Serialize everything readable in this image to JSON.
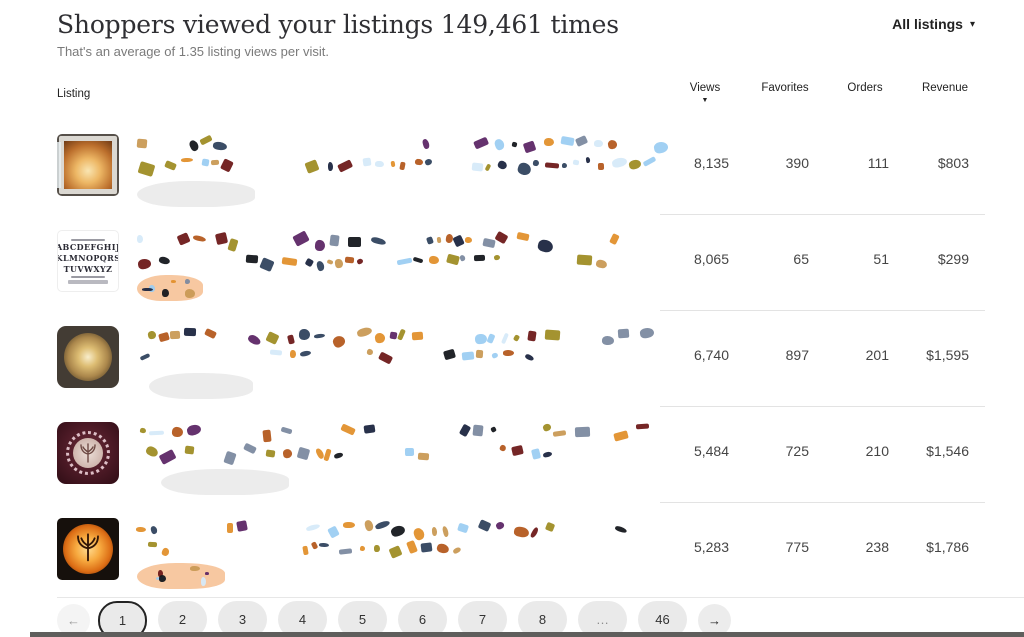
{
  "header": {
    "title": "Shoppers viewed your listings 149,461 times",
    "subtitle": "That's an average of 1.35 listing views per visit.",
    "filter_label": "All listings",
    "filter_caret": "▾"
  },
  "table": {
    "columns": {
      "listing": "Listing",
      "views": "Views",
      "favorites": "Favorites",
      "orders": "Orders",
      "revenue": "Revenue"
    },
    "sort": {
      "column": "views",
      "direction": "desc",
      "icon": "▼"
    },
    "rows": [
      {
        "views": "8,135",
        "favorites": "390",
        "orders": "111",
        "revenue": "$803",
        "thumbnail": "lighted-window-shadow-box"
      },
      {
        "views": "8,065",
        "favorites": "65",
        "orders": "51",
        "revenue": "$299",
        "thumbnail": "font-alphabet-preview",
        "thumb_text": {
          "line1": "ABCDEFGHIJ",
          "line2": "KLMNOPQRS",
          "line3": "TUVWXYZ"
        }
      },
      {
        "views": "6,740",
        "favorites": "897",
        "orders": "201",
        "revenue": "$1,595",
        "thumbnail": "gold-sparkle-circle"
      },
      {
        "views": "5,484",
        "favorites": "725",
        "orders": "210",
        "revenue": "$1,546",
        "thumbnail": "maroon-tree-of-life-plate"
      },
      {
        "views": "5,283",
        "favorites": "775",
        "orders": "238",
        "revenue": "$1,786",
        "thumbnail": "orange-glow-tree-lightbox"
      }
    ]
  },
  "pagination": {
    "prev": "←",
    "next": "→",
    "pages": [
      "1",
      "2",
      "3",
      "4",
      "5",
      "6",
      "7",
      "8",
      "…",
      "46"
    ],
    "active": "1"
  },
  "colors": {
    "text_primary": "#2f2f33",
    "text_secondary": "#7a7a7a",
    "divider": "#e3e3e3",
    "pill_bg": "#eaeaea",
    "bottom_bar": "#5f5e5c"
  },
  "redaction": {
    "palette": [
      "#1c2640",
      "#15181d",
      "#9ccdf2",
      "#d6eaf9",
      "#e2902c",
      "#b45a1f",
      "#6e1a1a",
      "#9f8d25",
      "#c99a55",
      "#5d2766",
      "#7c8aa0",
      "#30435e"
    ],
    "blob_colors": {
      "gray": "#ececec",
      "peach": "#f7c8a1"
    }
  }
}
